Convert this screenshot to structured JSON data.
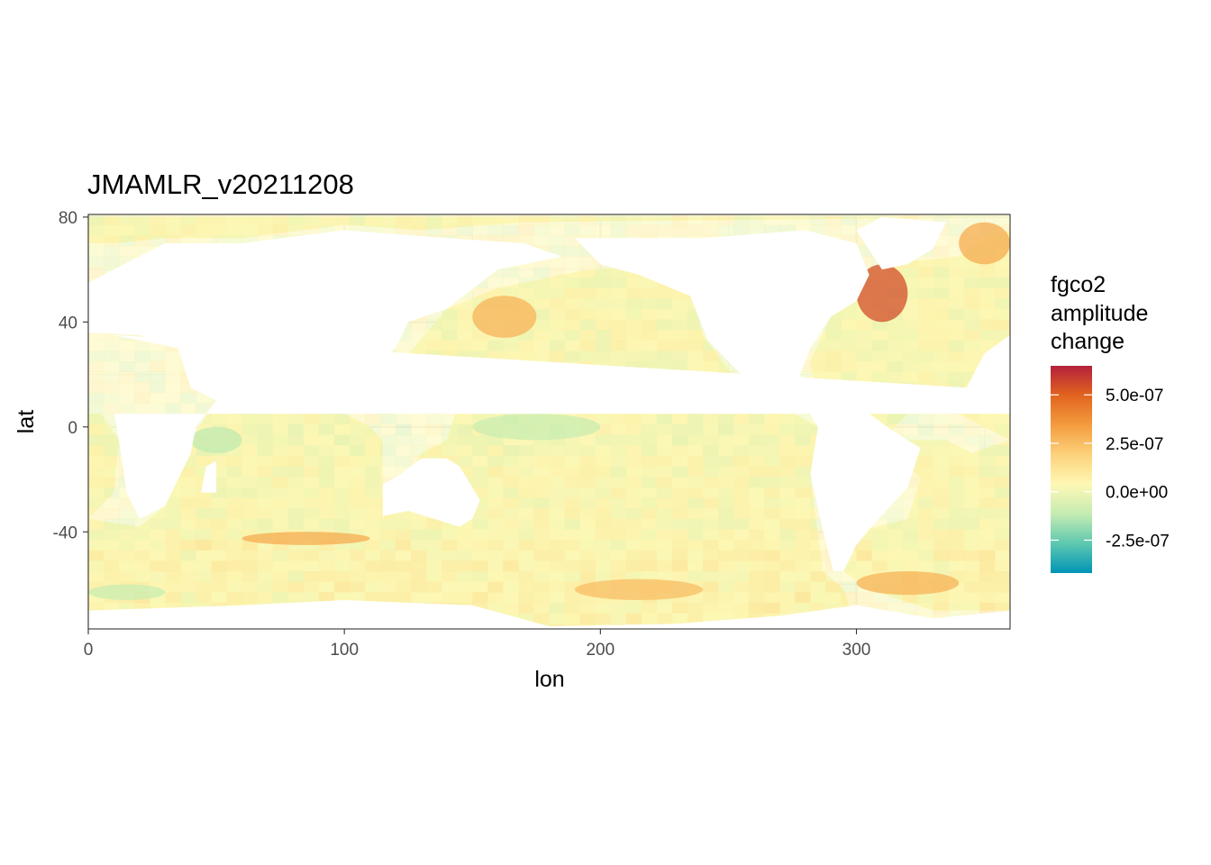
{
  "chart_data": {
    "type": "heatmap",
    "title": "JMAMLR_v20211208",
    "xlabel": "lon",
    "ylabel": "lat",
    "xlim": [
      0,
      360
    ],
    "ylim": [
      -77,
      81
    ],
    "x_ticks": [
      {
        "value": 0,
        "label": "0"
      },
      {
        "value": 100,
        "label": "100"
      },
      {
        "value": 200,
        "label": "200"
      },
      {
        "value": 300,
        "label": "300"
      }
    ],
    "y_ticks": [
      {
        "value": 80,
        "label": "80"
      },
      {
        "value": 40,
        "label": "40"
      },
      {
        "value": 0,
        "label": "0"
      },
      {
        "value": -40,
        "label": "-40"
      }
    ],
    "grid": true,
    "legend": {
      "title_lines": [
        "fgco2",
        "amplitude",
        "change"
      ],
      "placement": "right",
      "range": [
        -4.2e-07,
        6.5e-07
      ],
      "colors": [
        "#0095b6",
        "#5ec8b0",
        "#c5ecb2",
        "#fef8b4",
        "#fdd27c",
        "#f39c3e",
        "#e2641f",
        "#b3213c"
      ],
      "breaks": [
        {
          "value": 5e-07,
          "label": "5.0e-07"
        },
        {
          "value": 2.5e-07,
          "label": "2.5e-07"
        },
        {
          "value": 0.0,
          "label": "0.0e+00"
        },
        {
          "value": -2.5e-07,
          "label": "-2.5e-07"
        }
      ]
    },
    "ocean_regions": [
      {
        "name": "north-pacific",
        "polygon": [
          [
            120,
            22
          ],
          [
            140,
            45
          ],
          [
            160,
            53
          ],
          [
            195,
            60
          ],
          [
            215,
            61
          ],
          [
            228,
            60
          ],
          [
            236,
            50
          ],
          [
            240,
            35
          ],
          [
            250,
            22
          ],
          [
            255,
            15
          ],
          [
            262,
            14
          ],
          [
            270,
            8
          ],
          [
            285,
            0
          ],
          [
            282,
            -20
          ],
          [
            287,
            -55
          ],
          [
            295,
            -62
          ],
          [
            300,
            -77
          ],
          [
            120,
            -77
          ],
          [
            115,
            -35
          ],
          [
            125,
            -20
          ],
          [
            130,
            -10
          ],
          [
            140,
            -5
          ],
          [
            145,
            10
          ],
          [
            120,
            10
          ]
        ]
      },
      {
        "name": "north-atlantic",
        "polygon": [
          [
            285,
            8
          ],
          [
            282,
            25
          ],
          [
            290,
            42
          ],
          [
            300,
            50
          ],
          [
            305,
            60
          ],
          [
            320,
            63
          ],
          [
            340,
            65
          ],
          [
            350,
            72
          ],
          [
            360,
            75
          ],
          [
            360,
            -5
          ],
          [
            350,
            0
          ],
          [
            340,
            5
          ],
          [
            330,
            8
          ],
          [
            320,
            5
          ],
          [
            315,
            0
          ],
          [
            310,
            -5
          ],
          [
            300,
            -5
          ],
          [
            290,
            8
          ]
        ]
      },
      {
        "name": "south-atlantic",
        "polygon": [
          [
            300,
            -5
          ],
          [
            315,
            -8
          ],
          [
            325,
            -20
          ],
          [
            320,
            -35
          ],
          [
            300,
            -40
          ],
          [
            295,
            -55
          ],
          [
            305,
            -62
          ],
          [
            330,
            -70
          ],
          [
            360,
            -70
          ],
          [
            360,
            -5
          ],
          [
            345,
            -10
          ],
          [
            335,
            -5
          ]
        ]
      },
      {
        "name": "indian-ocean",
        "polygon": [
          [
            40,
            -5
          ],
          [
            50,
            10
          ],
          [
            55,
            20
          ],
          [
            60,
            25
          ],
          [
            68,
            22
          ],
          [
            75,
            8
          ],
          [
            80,
            15
          ],
          [
            90,
            22
          ],
          [
            98,
            15
          ],
          [
            100,
            5
          ],
          [
            110,
            0
          ],
          [
            115,
            -5
          ],
          [
            115,
            -35
          ],
          [
            120,
            -77
          ],
          [
            0,
            -77
          ],
          [
            0,
            -35
          ],
          [
            20,
            -38
          ],
          [
            30,
            -30
          ],
          [
            35,
            -20
          ],
          [
            40,
            -10
          ]
        ]
      },
      {
        "name": "arctic-band",
        "polygon": [
          [
            0,
            80
          ],
          [
            0,
            70
          ],
          [
            10,
            70
          ],
          [
            30,
            72
          ],
          [
            60,
            72
          ],
          [
            100,
            77
          ],
          [
            130,
            75
          ],
          [
            170,
            78
          ],
          [
            360,
            80
          ]
        ]
      },
      {
        "name": "west-africa-coast",
        "polygon": [
          [
            0,
            5
          ],
          [
            0,
            -35
          ],
          [
            10,
            -25
          ],
          [
            12,
            -5
          ],
          [
            5,
            5
          ]
        ]
      }
    ],
    "land_regions": [
      {
        "name": "north-america",
        "polygon": [
          [
            190,
            72
          ],
          [
            200,
            62
          ],
          [
            215,
            58
          ],
          [
            235,
            50
          ],
          [
            242,
            33
          ],
          [
            255,
            20
          ],
          [
            265,
            15
          ],
          [
            275,
            10
          ],
          [
            282,
            8
          ],
          [
            278,
            20
          ],
          [
            282,
            30
          ],
          [
            290,
            42
          ],
          [
            300,
            48
          ],
          [
            305,
            58
          ],
          [
            300,
            70
          ],
          [
            280,
            75
          ],
          [
            240,
            72
          ]
        ]
      },
      {
        "name": "greenland",
        "polygon": [
          [
            300,
            75
          ],
          [
            310,
            60
          ],
          [
            320,
            62
          ],
          [
            330,
            68
          ],
          [
            335,
            78
          ],
          [
            310,
            80
          ]
        ]
      },
      {
        "name": "south-america",
        "polygon": [
          [
            280,
            8
          ],
          [
            285,
            0
          ],
          [
            282,
            -18
          ],
          [
            287,
            -40
          ],
          [
            291,
            -55
          ],
          [
            295,
            -55
          ],
          [
            300,
            -45
          ],
          [
            306,
            -38
          ],
          [
            320,
            -23
          ],
          [
            325,
            -8
          ],
          [
            315,
            -2
          ],
          [
            305,
            5
          ],
          [
            290,
            10
          ]
        ]
      },
      {
        "name": "africa",
        "polygon": [
          [
            343,
            15
          ],
          [
            350,
            28
          ],
          [
            360,
            35
          ],
          [
            360,
            5
          ],
          [
            10,
            5
          ],
          [
            12,
            -5
          ],
          [
            15,
            -25
          ],
          [
            20,
            -35
          ],
          [
            30,
            -30
          ],
          [
            35,
            -20
          ],
          [
            40,
            -10
          ],
          [
            42,
            0
          ],
          [
            50,
            10
          ],
          [
            40,
            15
          ],
          [
            35,
            30
          ],
          [
            10,
            35
          ]
        ]
      },
      {
        "name": "eurasia",
        "polygon": [
          [
            0,
            36
          ],
          [
            0,
            55
          ],
          [
            10,
            60
          ],
          [
            30,
            70
          ],
          [
            60,
            70
          ],
          [
            100,
            75
          ],
          [
            140,
            72
          ],
          [
            170,
            70
          ],
          [
            185,
            65
          ],
          [
            160,
            60
          ],
          [
            140,
            45
          ],
          [
            125,
            40
          ],
          [
            120,
            30
          ],
          [
            108,
            20
          ],
          [
            100,
            10
          ],
          [
            98,
            15
          ],
          [
            90,
            22
          ],
          [
            80,
            10
          ],
          [
            75,
            20
          ],
          [
            68,
            23
          ],
          [
            58,
            25
          ],
          [
            50,
            30
          ],
          [
            35,
            30
          ],
          [
            20,
            35
          ]
        ]
      },
      {
        "name": "australia",
        "polygon": [
          [
            115,
            -22
          ],
          [
            115,
            -34
          ],
          [
            125,
            -32
          ],
          [
            135,
            -35
          ],
          [
            145,
            -38
          ],
          [
            150,
            -35
          ],
          [
            153,
            -28
          ],
          [
            145,
            -15
          ],
          [
            140,
            -12
          ],
          [
            130,
            -12
          ],
          [
            122,
            -18
          ]
        ]
      },
      {
        "name": "antarctica",
        "polygon": [
          [
            0,
            -70
          ],
          [
            60,
            -68
          ],
          [
            100,
            -66
          ],
          [
            150,
            -68
          ],
          [
            180,
            -76
          ],
          [
            230,
            -75
          ],
          [
            270,
            -72
          ],
          [
            300,
            -68
          ],
          [
            330,
            -73
          ],
          [
            360,
            -70
          ],
          [
            360,
            -90
          ],
          [
            0,
            -90
          ]
        ]
      },
      {
        "name": "madagascar",
        "polygon": [
          [
            44,
            -25
          ],
          [
            46,
            -15
          ],
          [
            50,
            -13
          ],
          [
            50,
            -25
          ]
        ]
      }
    ],
    "hotspots": [
      {
        "region": "kuroshio-extension",
        "lon_range": [
          150,
          175
        ],
        "lat_range": [
          34,
          50
        ],
        "value": 2.8e-07
      },
      {
        "region": "gulf-stream-labrador",
        "lon_range": [
          300,
          320
        ],
        "lat_range": [
          40,
          62
        ],
        "value": 5.5e-07
      },
      {
        "region": "nordic-seas",
        "lon_range": [
          340,
          360
        ],
        "lat_range": [
          62,
          78
        ],
        "value": 3e-07
      },
      {
        "region": "arabian-sea",
        "lon_range": [
          52,
          65
        ],
        "lat_range": [
          10,
          20
        ],
        "value": 3.5e-07
      },
      {
        "region": "southern-ocean-indian",
        "lon_range": [
          60,
          110
        ],
        "lat_range": [
          -45,
          -40
        ],
        "value": 3e-07
      },
      {
        "region": "southern-ocean-pacific",
        "lon_range": [
          190,
          240
        ],
        "lat_range": [
          -66,
          -58
        ],
        "value": 2.5e-07
      },
      {
        "region": "south-atlantic-front",
        "lon_range": [
          300,
          340
        ],
        "lat_range": [
          -64,
          -55
        ],
        "value": 2.8e-07
      },
      {
        "region": "mid-pacific-negative",
        "lon_range": [
          150,
          200
        ],
        "lat_range": [
          -5,
          5
        ],
        "value": -1e-07
      },
      {
        "region": "indian-negative",
        "lon_range": [
          40,
          60
        ],
        "lat_range": [
          -10,
          0
        ],
        "value": -1.2e-07
      },
      {
        "region": "southern-negative",
        "lon_range": [
          0,
          30
        ],
        "lat_range": [
          -66,
          -60
        ],
        "value": -1e-07
      }
    ]
  }
}
